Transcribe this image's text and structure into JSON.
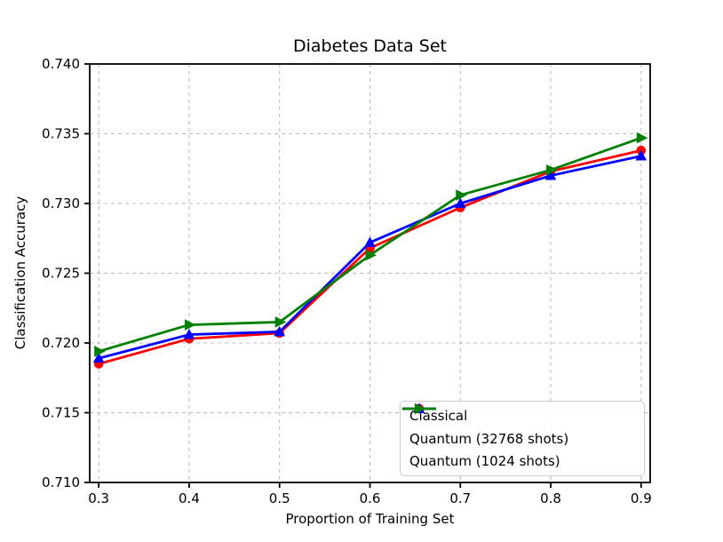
{
  "chart_data": {
    "type": "line",
    "title": "Diabetes Data Set",
    "xlabel": "Proportion of Training Set",
    "ylabel": "Classification Accuracy",
    "x": [
      0.3,
      0.4,
      0.5,
      0.6,
      0.7,
      0.8,
      0.9
    ],
    "series": [
      {
        "name": "Classical",
        "color": "#ff0000",
        "marker": "circle",
        "values": [
          0.7185,
          0.7203,
          0.7207,
          0.7268,
          0.7297,
          0.7323,
          0.7338
        ]
      },
      {
        "name": "Quantum (32768 shots)",
        "color": "#0000ff",
        "marker": "triangle-up",
        "values": [
          0.7189,
          0.7206,
          0.7208,
          0.7272,
          0.73,
          0.732,
          0.7334
        ]
      },
      {
        "name": "Quantum (1024 shots)",
        "color": "#008000",
        "marker": "triangle-right",
        "values": [
          0.7194,
          0.7213,
          0.7215,
          0.7263,
          0.7306,
          0.7324,
          0.7347
        ]
      }
    ],
    "xlim": [
      0.29,
      0.91
    ],
    "ylim": [
      0.71,
      0.74
    ],
    "xtick_labels": [
      "0.3",
      "0.4",
      "0.5",
      "0.6",
      "0.7",
      "0.8",
      "0.9"
    ],
    "ytick_labels": [
      "0.710",
      "0.715",
      "0.720",
      "0.725",
      "0.730",
      "0.735",
      "0.740"
    ],
    "grid": true,
    "grid_color": "#b8b8b8",
    "legend_position": "lower right"
  }
}
